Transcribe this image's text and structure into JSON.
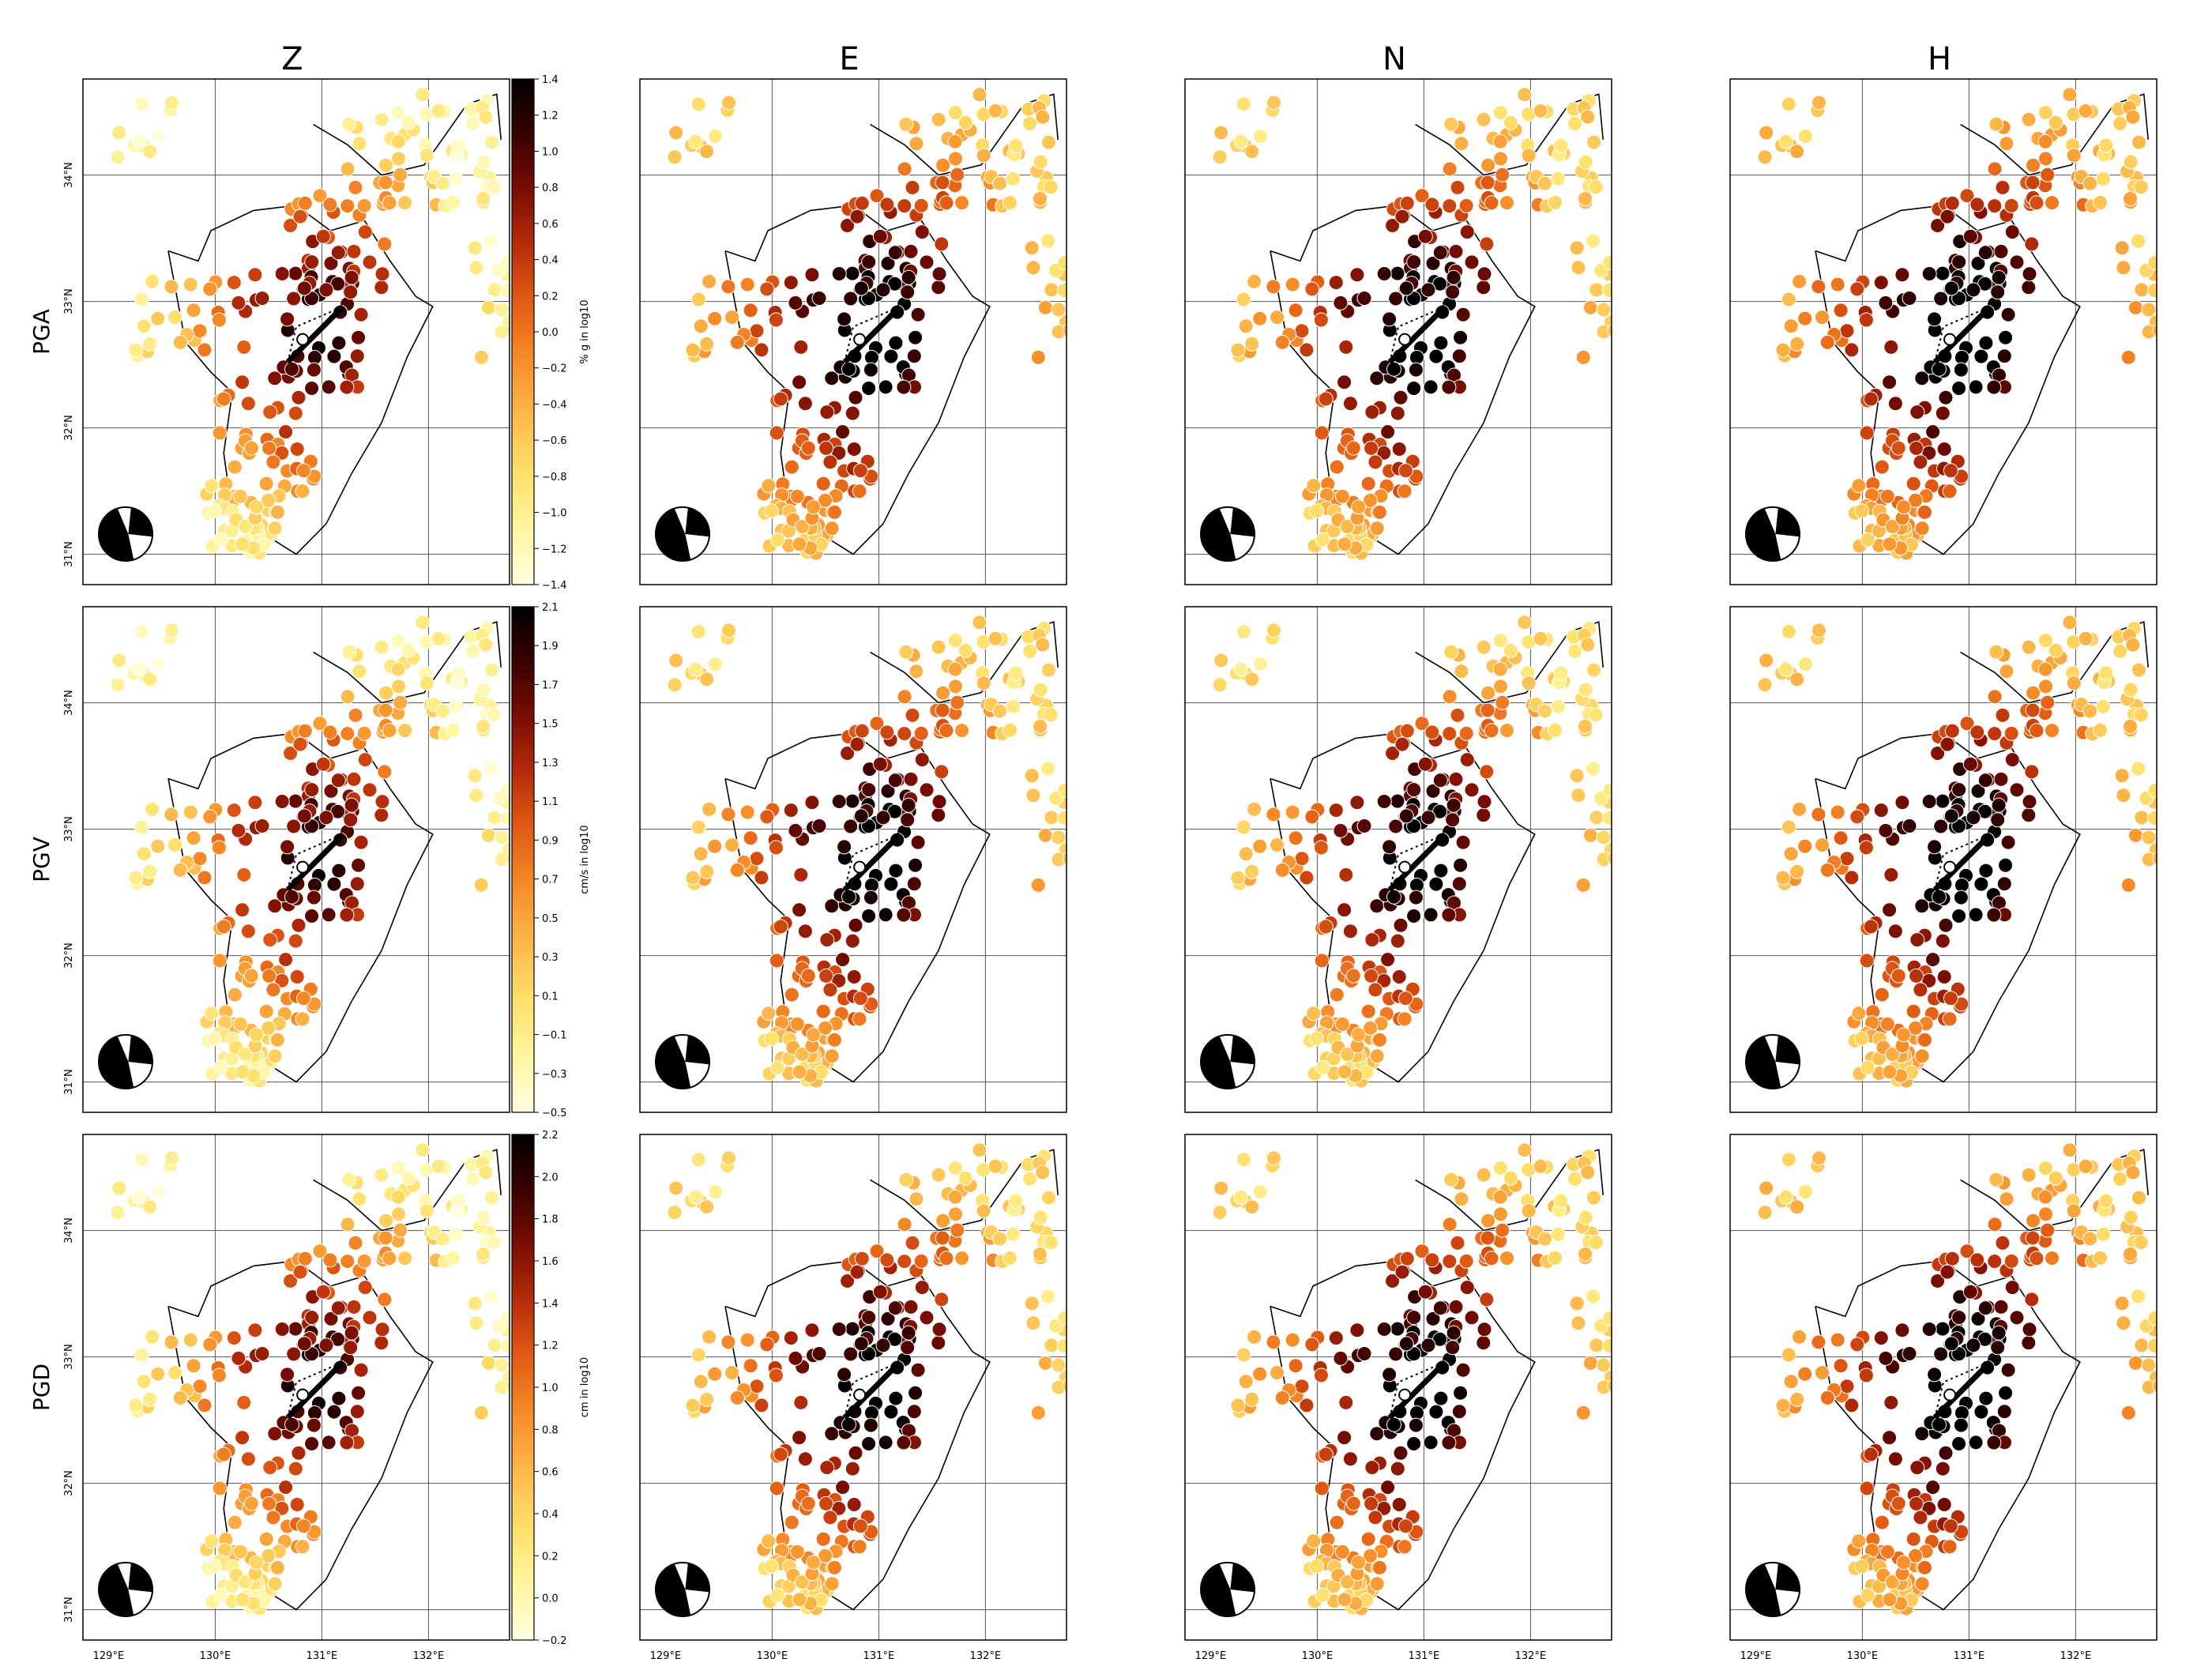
{
  "columns": [
    "Z",
    "E",
    "N",
    "H"
  ],
  "rows": [
    {
      "label": "PGA",
      "unit": "% g in log10",
      "ticks": [
        "1.4",
        "1.2",
        "1.0",
        "0.8",
        "0.6",
        "0.4",
        "0.2",
        "0.0",
        "−0.2",
        "−0.4",
        "−0.6",
        "−0.8",
        "−1.0",
        "−1.2",
        "−1.4"
      ],
      "vmin": -1.4,
      "vmax": 1.4,
      "shift": [
        0,
        0.45,
        0.4,
        0.55
      ]
    },
    {
      "label": "PGV",
      "unit": "cm/s in log10",
      "ticks": [
        "2.1",
        "1.9",
        "1.7",
        "1.5",
        "1.3",
        "1.1",
        "0.9",
        "0.7",
        "0.5",
        "0.3",
        "0.1",
        "−0.1",
        "−0.3",
        "−0.5"
      ],
      "vmin": -0.5,
      "vmax": 2.1,
      "shift": [
        0,
        0.35,
        0.3,
        0.45
      ]
    },
    {
      "label": "PGD",
      "unit": "cm in log10",
      "ticks": [
        "2.2",
        "2.0",
        "1.8",
        "1.6",
        "1.4",
        "1.2",
        "1.0",
        "0.8",
        "0.6",
        "0.4",
        "0.2",
        "0.0",
        "−0.2"
      ],
      "vmin": -0.2,
      "vmax": 2.2,
      "shift": [
        0,
        0.3,
        0.35,
        0.45
      ]
    }
  ],
  "lat_labels": [
    "34°N",
    "33°N",
    "32°N",
    "31°N"
  ],
  "lon_labels": [
    "129°E",
    "130°E",
    "131°E",
    "132°E"
  ],
  "colormap": [
    "#ffffe0",
    "#fff5a0",
    "#ffe06a",
    "#fdb84a",
    "#f78d28",
    "#e35d14",
    "#b82e0a",
    "#7c0e04",
    "#3a0200",
    "#000000"
  ]
}
